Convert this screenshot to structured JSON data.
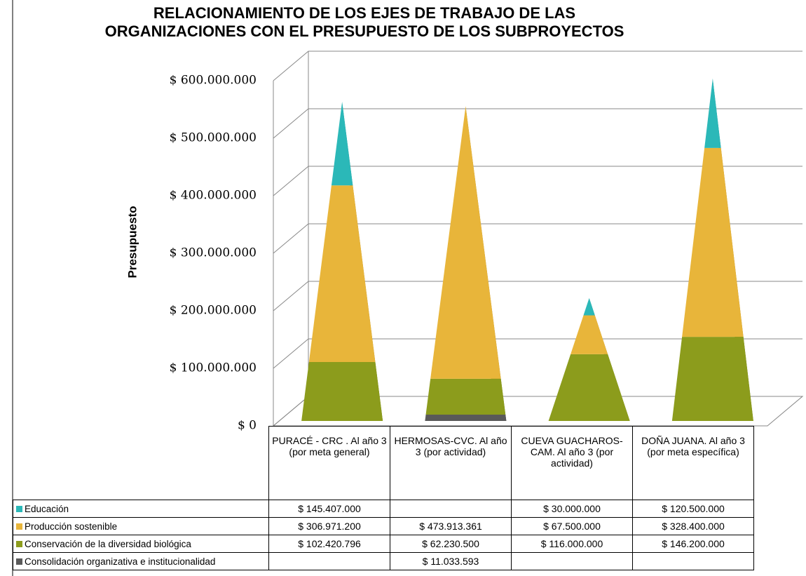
{
  "chart_data": {
    "type": "pyramid",
    "title": "RELACIONAMIENTO DE LOS EJES DE TRABAJO DE LAS ORGANIZACIONES CON EL PRESUPUESTO DE LOS SUBPROYECTOS",
    "y_axis_label": "Presupuesto",
    "categories": [
      "PURACÉ - CRC . Al año 3 (por meta general)",
      "HERMOSAS-CVC. Al año 3 (por actividad)",
      "CUEVA GUACHAROS-CAM. Al año 3 (por actividad)",
      "DOÑA JUANA. Al año 3 (por meta específica)"
    ],
    "series": [
      {
        "name": "Educación",
        "color": "#2bb8b8",
        "values": [
          145407000,
          null,
          30000000,
          120500000
        ],
        "value_labels": [
          "$ 145.407.000",
          null,
          "$ 30.000.000",
          "$ 120.500.000"
        ]
      },
      {
        "name": "Producción sostenible",
        "color": "#e8b53a",
        "values": [
          306971200,
          473913361,
          67500000,
          328400000
        ],
        "value_labels": [
          "$ 306.971.200",
          "$ 473.913.361",
          "$ 67.500.000",
          "$ 328.400.000"
        ]
      },
      {
        "name": "Conservación de la diversidad biológica",
        "color": "#8c9c1c",
        "values": [
          102420796,
          62230500,
          116000000,
          146200000
        ],
        "value_labels": [
          "$ 102.420.796",
          "$ 62.230.500",
          "$ 116.000.000",
          "$ 146.200.000"
        ]
      },
      {
        "name": "Consolidación organizativa e institucionalidad",
        "color": "#595959",
        "values": [
          null,
          11033593,
          null,
          null
        ],
        "value_labels": [
          null,
          "$ 11.033.593",
          null,
          null
        ]
      }
    ],
    "ylim": [
      0,
      600000000
    ],
    "yticks": [
      {
        "value": 0,
        "label": "$ 0"
      },
      {
        "value": 100000000,
        "label": "$ 100.000.000"
      },
      {
        "value": 200000000,
        "label": "$ 200.000.000"
      },
      {
        "value": 300000000,
        "label": "$ 300.000.000"
      },
      {
        "value": 400000000,
        "label": "$ 400.000.000"
      },
      {
        "value": 500000000,
        "label": "$ 500.000.000"
      },
      {
        "value": 600000000,
        "label": "$ 600.000.000"
      }
    ],
    "grid": true,
    "legend": "table"
  }
}
